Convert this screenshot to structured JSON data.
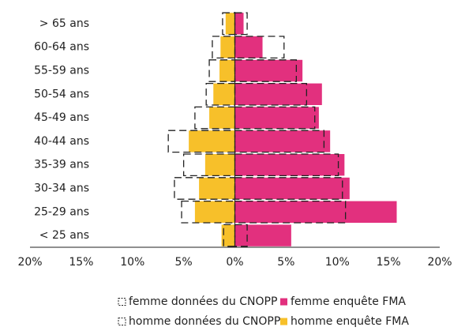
{
  "chart_data": {
    "type": "pyramid",
    "categories": [
      "> 65 ans",
      "60-64 ans",
      "55-59 ans",
      "50-54 ans",
      "45-49 ans",
      "40-44 ans",
      "35-39 ans",
      "30-34 ans",
      "25-29 ans",
      "< 25 ans"
    ],
    "series": [
      {
        "name": "femme données du CNOPP",
        "color": "#222222",
        "dashed": true,
        "values": [
          1.2,
          4.8,
          6.0,
          7.0,
          7.8,
          8.7,
          10.1,
          10.5,
          10.8,
          1.2
        ]
      },
      {
        "name": "femme enquête FMA",
        "color": "#e2307e",
        "dashed": false,
        "values": [
          0.85,
          2.7,
          6.6,
          8.5,
          8.2,
          9.3,
          10.7,
          11.2,
          15.8,
          5.5
        ]
      },
      {
        "name": "homme données du CNOPP",
        "color": "#222222",
        "dashed": true,
        "values": [
          -1.2,
          -2.2,
          -2.5,
          -2.8,
          -3.9,
          -6.5,
          -5.0,
          -5.9,
          -5.2,
          -1.1
        ]
      },
      {
        "name": "homme enquête FMA",
        "color": "#f7c02a",
        "dashed": false,
        "values": [
          -0.9,
          -1.4,
          -1.5,
          -2.1,
          -2.5,
          -4.5,
          -2.9,
          -3.5,
          -3.9,
          -1.3
        ]
      }
    ],
    "xlim": [
      -20,
      20
    ],
    "xticks": [
      {
        "value": -20,
        "label": "20%"
      },
      {
        "value": -15,
        "label": "15%"
      },
      {
        "value": -10,
        "label": "10%"
      },
      {
        "value": -5,
        "label": "5%"
      },
      {
        "value": 0,
        "label": "0%"
      },
      {
        "value": 5,
        "label": "5%"
      },
      {
        "value": 10,
        "label": "10%"
      },
      {
        "value": 15,
        "label": "15%"
      },
      {
        "value": 20,
        "label": "20%"
      }
    ]
  }
}
